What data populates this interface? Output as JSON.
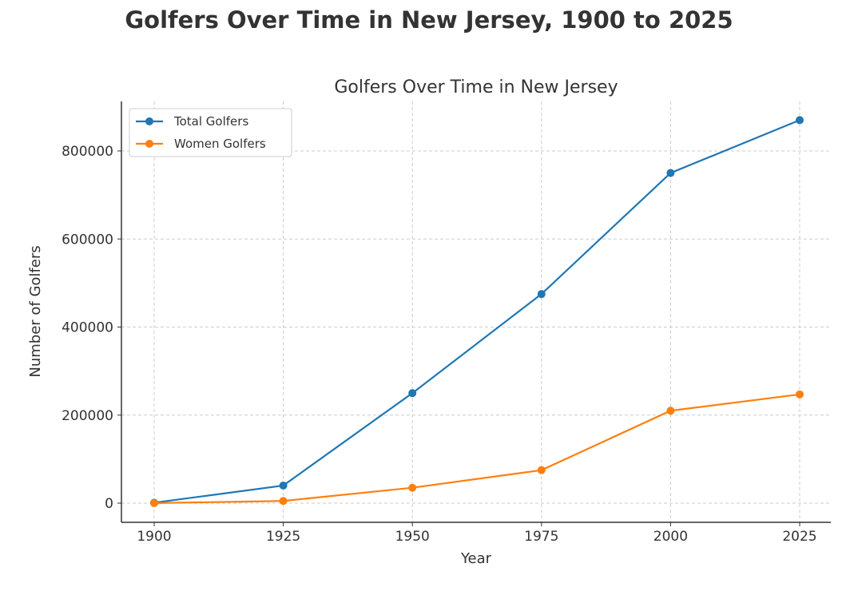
{
  "suptitle": "Golfers Over Time in New Jersey, 1900 to 2025",
  "chart_data": {
    "type": "line",
    "title": "Golfers Over Time in New Jersey",
    "xlabel": "Year",
    "ylabel": "Number of Golfers",
    "x": [
      1900,
      1925,
      1950,
      1975,
      2000,
      2025
    ],
    "xticks": [
      "1900",
      "1925",
      "1950",
      "1975",
      "2000",
      "2025"
    ],
    "yticks": [
      "0",
      "200000",
      "400000",
      "600000",
      "800000"
    ],
    "ytick_values": [
      0,
      200000,
      400000,
      600000,
      800000
    ],
    "xlim": [
      1892.5,
      2032.5
    ],
    "ylim": [
      -43500,
      913500
    ],
    "grid": true,
    "legend_position": "top-left",
    "series": [
      {
        "name": "Total Golfers",
        "color": "#1f77b4",
        "values": [
          1000,
          40000,
          250000,
          475000,
          750000,
          870000
        ]
      },
      {
        "name": "Women Golfers",
        "color": "#ff7f0e",
        "values": [
          100,
          5000,
          35000,
          75000,
          210000,
          247000
        ]
      }
    ]
  }
}
